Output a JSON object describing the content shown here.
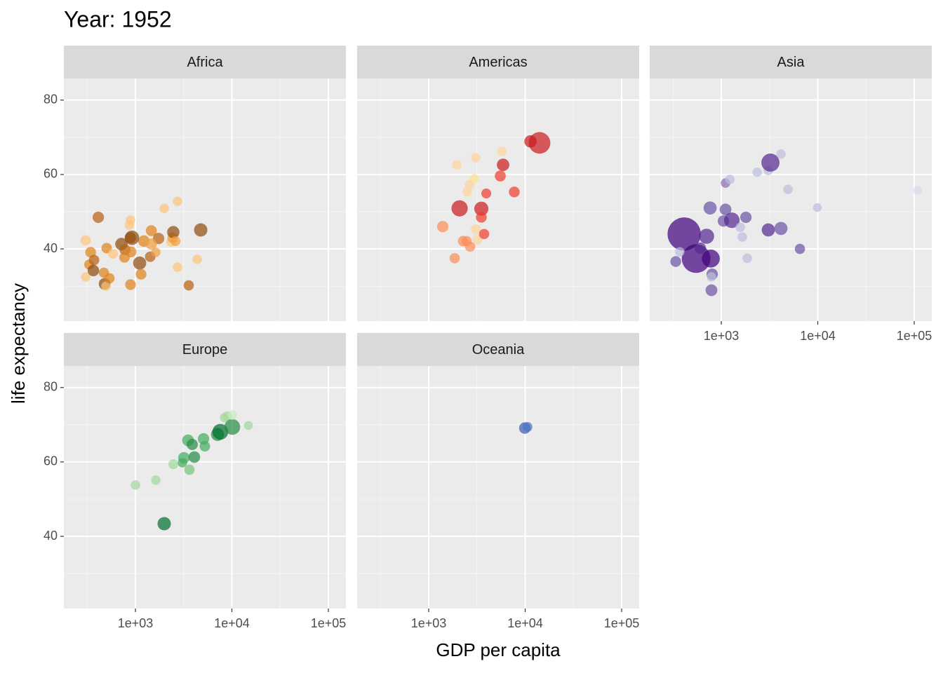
{
  "title": "Year: 1952",
  "x_label": "GDP per capita",
  "y_label": "life expectancy",
  "chart_data": [
    {
      "type": "scatter",
      "title": "Africa",
      "log_x": true,
      "grid": true,
      "xlim": [
        181,
        152000
      ],
      "ylim": [
        20.6,
        85.8
      ],
      "xticks": [
        {
          "value": 1000,
          "label": "1e+03"
        },
        {
          "value": 10000,
          "label": "1e+04"
        },
        {
          "value": 100000,
          "label": "1e+05"
        }
      ],
      "yticks": [
        40,
        60,
        80
      ],
      "x": [
        305,
        343,
        331,
        372,
        305,
        366,
        412,
        471,
        479,
        495,
        503,
        538,
        585,
        889,
        889,
        716,
        778,
        770,
        889,
        900,
        1106,
        1143,
        1223,
        1422,
        1462,
        1738,
        1626,
        1987,
        2350,
        2430,
        2470,
        2730,
        2730,
        3570,
        4370,
        4750,
        920,
        1462,
        867,
        2600
      ],
      "y": [
        42.3,
        39.1,
        35.8,
        37.0,
        32.5,
        34.2,
        48.5,
        33.6,
        30.6,
        30.0,
        40.2,
        32.1,
        38.7,
        47.7,
        30.4,
        41.3,
        39.8,
        37.7,
        43.0,
        39.2,
        36.2,
        33.2,
        42.1,
        37.9,
        44.9,
        42.8,
        39.1,
        50.9,
        41.9,
        43.0,
        44.5,
        52.8,
        35.1,
        30.2,
        37.2,
        45.1,
        43.0,
        41.3,
        46.4,
        42.1
      ],
      "size": [
        3,
        5,
        2,
        4,
        1,
        9,
        8,
        3,
        10,
        1,
        4,
        3,
        2,
        1,
        5,
        15,
        6,
        4,
        7,
        5,
        20,
        5,
        9,
        4,
        6,
        8,
        1,
        1,
        2,
        4,
        14,
        1,
        1,
        3,
        1,
        22,
        33,
        7,
        1,
        2
      ],
      "colors": [
        "#fdc47a",
        "#e0821a",
        "#e0821a",
        "#b8600e",
        "#fdc47a",
        "#8c4a0a",
        "#b8600e",
        "#e0821a",
        "#8c4a0a",
        "#fdc47a",
        "#e0821a",
        "#e0821a",
        "#fdc47a",
        "#fdc47a",
        "#e0821a",
        "#8c4a0a",
        "#b8600e",
        "#e0821a",
        "#b8600e",
        "#e0821a",
        "#8c4a0a",
        "#e0821a",
        "#e0821a",
        "#b8600e",
        "#e0821a",
        "#b8600e",
        "#f0a040",
        "#fdc47a",
        "#fdc47a",
        "#f0a040",
        "#8c4a0a",
        "#fdc47a",
        "#fdc47a",
        "#b8600e",
        "#fdc47a",
        "#8c4a0a",
        "#8c4a0a",
        "#f0a040",
        "#fdc47a",
        "#f0a040"
      ]
    },
    {
      "type": "scatter",
      "title": "Americas",
      "log_x": true,
      "grid": true,
      "xlim": [
        181,
        152000
      ],
      "ylim": [
        20.6,
        85.8
      ],
      "xticks": [
        {
          "value": 1000,
          "label": "1e+03"
        },
        {
          "value": 10000,
          "label": "1e+04"
        },
        {
          "value": 100000,
          "label": "1e+05"
        }
      ],
      "yticks": [
        40,
        60,
        80
      ],
      "x": [
        1397,
        1858,
        1954,
        2089,
        2270,
        2470,
        2686,
        2510,
        2640,
        2970,
        3070,
        3070,
        3180,
        3510,
        3510,
        3750,
        3950,
        5520,
        5710,
        5900,
        7710,
        11350,
        14090
      ],
      "y": [
        46.0,
        37.5,
        62.6,
        50.9,
        42.1,
        42.1,
        40.6,
        55.3,
        57.2,
        58.9,
        64.5,
        45.3,
        42.5,
        50.8,
        48.5,
        44.0,
        54.9,
        59.6,
        66.2,
        62.6,
        55.3,
        68.9,
        68.5
      ],
      "size": [
        8,
        3,
        1,
        56,
        4,
        3,
        3,
        1,
        2,
        1,
        1,
        2,
        3,
        30,
        5,
        3,
        2,
        6,
        1,
        15,
        5,
        14,
        157
      ],
      "colors": [
        "#fc8d59",
        "#fc8d59",
        "#fdd49e",
        "#cb181d",
        "#fc8d59",
        "#fc8d59",
        "#fc8d59",
        "#fdd49e",
        "#fdd49e",
        "#fee391",
        "#fdd49e",
        "#fdd49e",
        "#fdd49e",
        "#cb181d",
        "#ef3b2c",
        "#ef3b2c",
        "#ef3b2c",
        "#ef3b2c",
        "#fdd49e",
        "#cb181d",
        "#ef3b2c",
        "#cb181d",
        "#cb181d"
      ]
    },
    {
      "type": "scatter",
      "title": "Asia",
      "log_x": true,
      "grid": true,
      "xlim": [
        181,
        152000
      ],
      "ylim": [
        20.6,
        85.8
      ],
      "xticks": [
        {
          "value": 1000,
          "label": "1e+03"
        },
        {
          "value": 10000,
          "label": "1e+04"
        },
        {
          "value": 100000,
          "label": "1e+05"
        }
      ],
      "yticks": [
        40,
        60,
        80
      ],
      "x": [
        412,
        548,
        778,
        337,
        371,
        605,
        703,
        765,
        804,
        790,
        790,
        1106,
        1228,
        1106,
        1052,
        1285,
        1572,
        1652,
        1799,
        1858,
        2350,
        3070,
        3230,
        3070,
        4150,
        4150,
        4910,
        6530,
        9910,
        108600
      ],
      "y": [
        44.0,
        37.4,
        37.4,
        36.6,
        39.2,
        40.2,
        43.4,
        51.0,
        33.2,
        28.9,
        32.5,
        57.7,
        58.7,
        50.6,
        47.5,
        47.7,
        45.8,
        43.2,
        48.5,
        37.5,
        60.6,
        61.1,
        63.2,
        45.1,
        65.5,
        45.5,
        56.0,
        40.0,
        51.1,
        55.7
      ],
      "size": [
        556,
        372,
        82,
        5,
        1,
        8,
        41,
        20,
        8,
        10,
        1,
        1,
        1,
        10,
        8,
        46,
        1,
        1,
        8,
        1,
        1,
        1,
        86,
        20,
        1,
        20,
        1,
        3,
        0.1,
        0.2
      ],
      "colors": [
        "#3f007d",
        "#3f007d",
        "#3f007d",
        "#6a51a3",
        "#bcbddc",
        "#54278f",
        "#54278f",
        "#6a51a3",
        "#6a51a3",
        "#6a51a3",
        "#bcbddc",
        "#8c6bb1",
        "#bcbddc",
        "#6a51a3",
        "#6a51a3",
        "#54278f",
        "#bcbddc",
        "#bcbddc",
        "#6a51a3",
        "#bcbddc",
        "#bcbddc",
        "#bcbddc",
        "#54278f",
        "#54278f",
        "#bcbddc",
        "#6a51a3",
        "#bcbddc",
        "#6a51a3",
        "#bcbddc",
        "#dadaeb"
      ]
    },
    {
      "type": "scatter",
      "title": "Europe",
      "log_x": true,
      "grid": true,
      "xlim": [
        181,
        152000
      ],
      "ylim": [
        20.6,
        85.8
      ],
      "xticks": [
        {
          "value": 1000,
          "label": "1e+03"
        },
        {
          "value": 10000,
          "label": "1e+04"
        },
        {
          "value": 100000,
          "label": "1e+05"
        }
      ],
      "yticks": [
        40,
        60,
        80
      ],
      "x": [
        1000,
        1626,
        1987,
        2470,
        3070,
        3180,
        3630,
        3510,
        3880,
        4080,
        5080,
        5240,
        7100,
        7580,
        8390,
        8950,
        10090,
        10090,
        14820
      ],
      "y": [
        53.8,
        55.1,
        43.4,
        59.4,
        59.8,
        61.1,
        57.9,
        65.8,
        64.7,
        61.3,
        66.2,
        64.2,
        67.4,
        68.1,
        71.9,
        72.3,
        69.4,
        72.6,
        69.8
      ],
      "size": [
        1,
        1,
        22,
        2,
        1,
        9,
        3,
        10,
        7,
        9,
        8,
        4,
        20,
        50,
        1,
        1,
        49,
        1,
        0.2
      ],
      "colors": [
        "#a1d99b",
        "#a1d99b",
        "#006d2c",
        "#a1d99b",
        "#41ab5d",
        "#41ab5d",
        "#74c476",
        "#41ab5d",
        "#238b45",
        "#238b45",
        "#41ab5d",
        "#41ab5d",
        "#238b45",
        "#006d2c",
        "#a1d99b",
        "#a1d99b",
        "#238b45",
        "#c7e9c0",
        "#a1d99b"
      ]
    },
    {
      "type": "scatter",
      "title": "Oceania",
      "log_x": true,
      "grid": true,
      "xlim": [
        181,
        152000
      ],
      "ylim": [
        20.6,
        85.8
      ],
      "xticks": [
        {
          "value": 1000,
          "label": "1e+03"
        },
        {
          "value": 10000,
          "label": "1e+04"
        },
        {
          "value": 100000,
          "label": "1e+05"
        }
      ],
      "yticks": [
        40,
        60,
        80
      ],
      "x": [
        9910,
        10560
      ],
      "y": [
        69.1,
        69.4
      ],
      "size": [
        8.7,
        1.9
      ],
      "colors": [
        "#3a5fad",
        "#4a73c4"
      ]
    }
  ]
}
